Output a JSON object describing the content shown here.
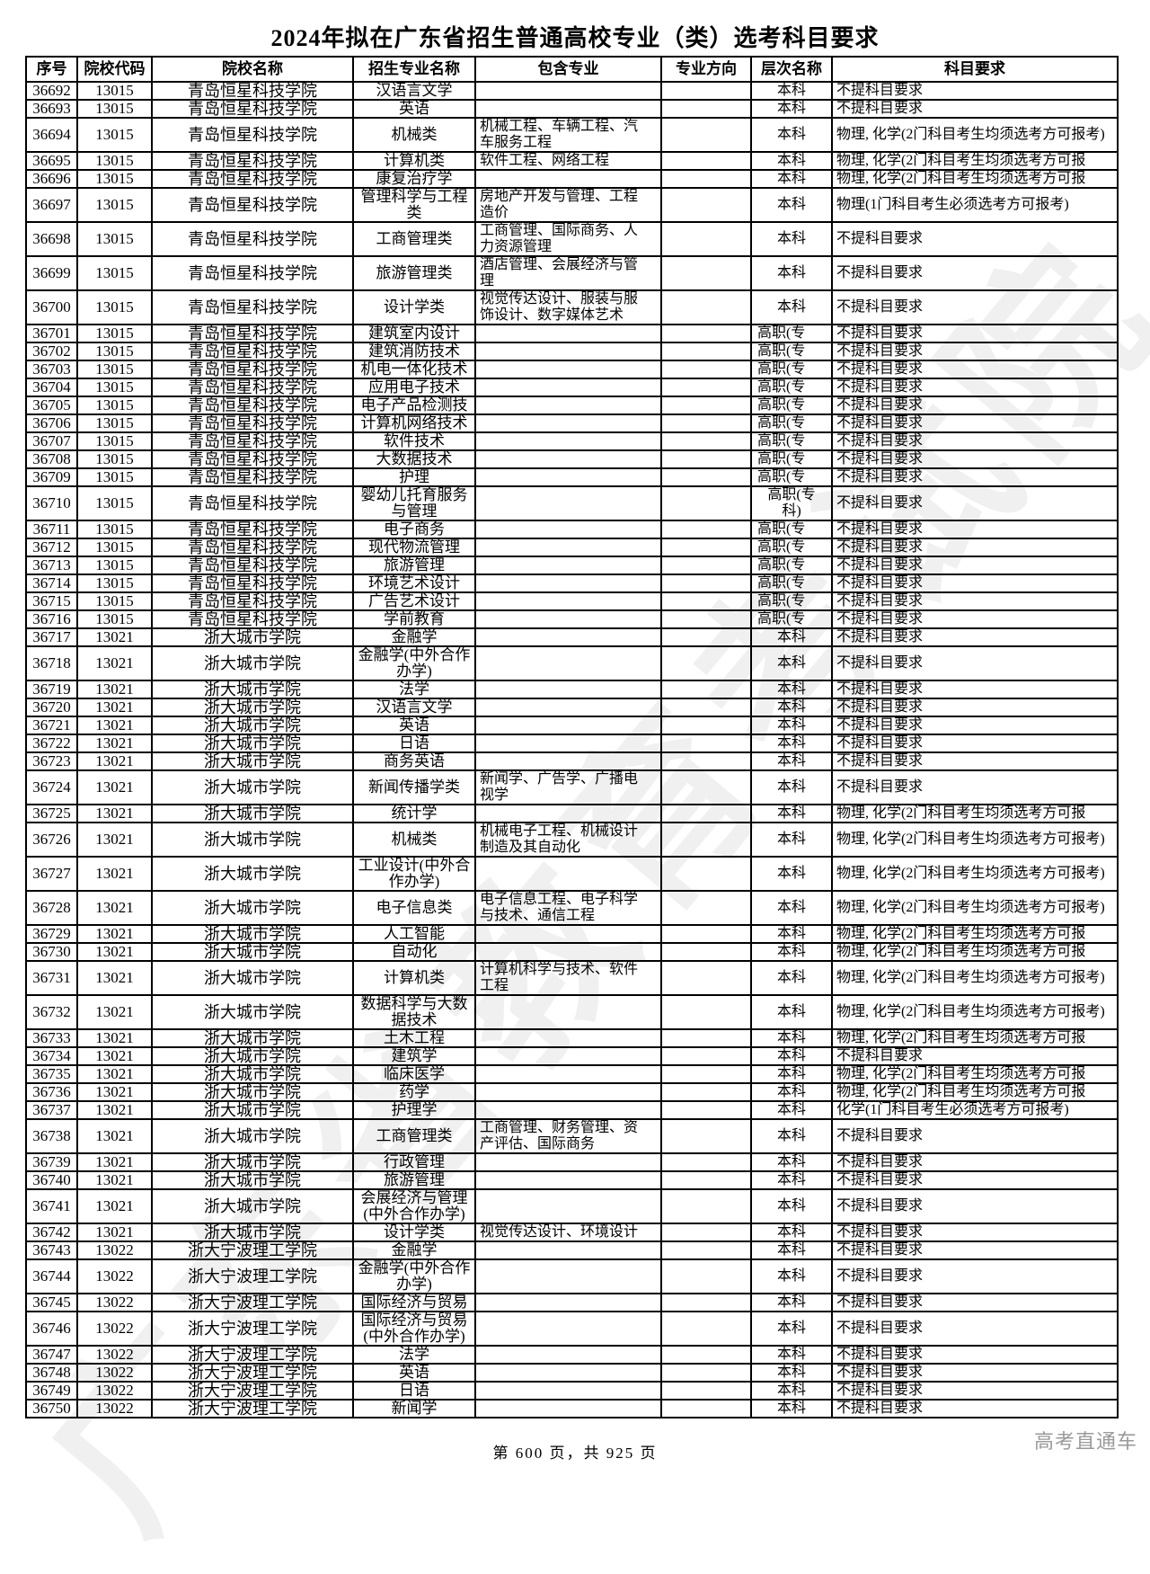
{
  "page": {
    "title": "2024年拟在广东省招生普通高校专业（类）选考科目要求",
    "footer_text": "第 600 页，共 925 页",
    "brand": "高考直通车",
    "watermark": "广东省教育考试院"
  },
  "table": {
    "headers": [
      "序号",
      "院校代码",
      "院校名称",
      "招生专业名称",
      "包含专业",
      "专业方向",
      "层次名称",
      "科目要求"
    ],
    "rows": [
      {
        "seq": "36692",
        "code": "13015",
        "school": "青岛恒星科技学院",
        "major": "汉语言文学",
        "inc": "",
        "dir": "",
        "level": "本科",
        "req": "不提科目要求",
        "h": 1
      },
      {
        "seq": "36693",
        "code": "13015",
        "school": "青岛恒星科技学院",
        "major": "英语",
        "inc": "",
        "dir": "",
        "level": "本科",
        "req": "不提科目要求",
        "h": 1
      },
      {
        "seq": "36694",
        "code": "13015",
        "school": "青岛恒星科技学院",
        "major": "机械类",
        "inc": "机械工程、车辆工程、汽车服务工程",
        "dir": "",
        "level": "本科",
        "req": "物理, 化学(2门科目考生均须选考方可报考)",
        "h": 2
      },
      {
        "seq": "36695",
        "code": "13015",
        "school": "青岛恒星科技学院",
        "major": "计算机类",
        "inc": "软件工程、网络工程",
        "dir": "",
        "level": "本科",
        "req": "物理, 化学(2门科目考生均须选考方可报",
        "h": 1
      },
      {
        "seq": "36696",
        "code": "13015",
        "school": "青岛恒星科技学院",
        "major": "康复治疗学",
        "inc": "",
        "dir": "",
        "level": "本科",
        "req": "物理, 化学(2门科目考生均须选考方可报",
        "h": 1
      },
      {
        "seq": "36697",
        "code": "13015",
        "school": "青岛恒星科技学院",
        "major": "管理科学与工程类",
        "inc": "房地产开发与管理、工程造价",
        "dir": "",
        "level": "本科",
        "req": "物理(1门科目考生必须选考方可报考)",
        "h": 2
      },
      {
        "seq": "36698",
        "code": "13015",
        "school": "青岛恒星科技学院",
        "major": "工商管理类",
        "inc": "工商管理、国际商务、人力资源管理",
        "dir": "",
        "level": "本科",
        "req": "不提科目要求",
        "h": 2
      },
      {
        "seq": "36699",
        "code": "13015",
        "school": "青岛恒星科技学院",
        "major": "旅游管理类",
        "inc": "酒店管理、会展经济与管理",
        "dir": "",
        "level": "本科",
        "req": "不提科目要求",
        "h": 2
      },
      {
        "seq": "36700",
        "code": "13015",
        "school": "青岛恒星科技学院",
        "major": "设计学类",
        "inc": "视觉传达设计、服装与服饰设计、数字媒体艺术",
        "dir": "",
        "level": "本科",
        "req": "不提科目要求",
        "h": 2
      },
      {
        "seq": "36701",
        "code": "13015",
        "school": "青岛恒星科技学院",
        "major": "建筑室内设计",
        "inc": "",
        "dir": "",
        "level": "高职(专",
        "req": "不提科目要求",
        "h": 1
      },
      {
        "seq": "36702",
        "code": "13015",
        "school": "青岛恒星科技学院",
        "major": "建筑消防技术",
        "inc": "",
        "dir": "",
        "level": "高职(专",
        "req": "不提科目要求",
        "h": 1
      },
      {
        "seq": "36703",
        "code": "13015",
        "school": "青岛恒星科技学院",
        "major": "机电一体化技术",
        "inc": "",
        "dir": "",
        "level": "高职(专",
        "req": "不提科目要求",
        "h": 1
      },
      {
        "seq": "36704",
        "code": "13015",
        "school": "青岛恒星科技学院",
        "major": "应用电子技术",
        "inc": "",
        "dir": "",
        "level": "高职(专",
        "req": "不提科目要求",
        "h": 1
      },
      {
        "seq": "36705",
        "code": "13015",
        "school": "青岛恒星科技学院",
        "major": "电子产品检测技",
        "inc": "",
        "dir": "",
        "level": "高职(专",
        "req": "不提科目要求",
        "h": 1
      },
      {
        "seq": "36706",
        "code": "13015",
        "school": "青岛恒星科技学院",
        "major": "计算机网络技术",
        "inc": "",
        "dir": "",
        "level": "高职(专",
        "req": "不提科目要求",
        "h": 1
      },
      {
        "seq": "36707",
        "code": "13015",
        "school": "青岛恒星科技学院",
        "major": "软件技术",
        "inc": "",
        "dir": "",
        "level": "高职(专",
        "req": "不提科目要求",
        "h": 1
      },
      {
        "seq": "36708",
        "code": "13015",
        "school": "青岛恒星科技学院",
        "major": "大数据技术",
        "inc": "",
        "dir": "",
        "level": "高职(专",
        "req": "不提科目要求",
        "h": 1
      },
      {
        "seq": "36709",
        "code": "13015",
        "school": "青岛恒星科技学院",
        "major": "护理",
        "inc": "",
        "dir": "",
        "level": "高职(专",
        "req": "不提科目要求",
        "h": 1
      },
      {
        "seq": "36710",
        "code": "13015",
        "school": "青岛恒星科技学院",
        "major": "婴幼儿托育服务与管理",
        "inc": "",
        "dir": "",
        "level": "高职(专\n科)",
        "req": "不提科目要求",
        "h": 2
      },
      {
        "seq": "36711",
        "code": "13015",
        "school": "青岛恒星科技学院",
        "major": "电子商务",
        "inc": "",
        "dir": "",
        "level": "高职(专",
        "req": "不提科目要求",
        "h": 1
      },
      {
        "seq": "36712",
        "code": "13015",
        "school": "青岛恒星科技学院",
        "major": "现代物流管理",
        "inc": "",
        "dir": "",
        "level": "高职(专",
        "req": "不提科目要求",
        "h": 1
      },
      {
        "seq": "36713",
        "code": "13015",
        "school": "青岛恒星科技学院",
        "major": "旅游管理",
        "inc": "",
        "dir": "",
        "level": "高职(专",
        "req": "不提科目要求",
        "h": 1
      },
      {
        "seq": "36714",
        "code": "13015",
        "school": "青岛恒星科技学院",
        "major": "环境艺术设计",
        "inc": "",
        "dir": "",
        "level": "高职(专",
        "req": "不提科目要求",
        "h": 1
      },
      {
        "seq": "36715",
        "code": "13015",
        "school": "青岛恒星科技学院",
        "major": "广告艺术设计",
        "inc": "",
        "dir": "",
        "level": "高职(专",
        "req": "不提科目要求",
        "h": 1
      },
      {
        "seq": "36716",
        "code": "13015",
        "school": "青岛恒星科技学院",
        "major": "学前教育",
        "inc": "",
        "dir": "",
        "level": "高职(专",
        "req": "不提科目要求",
        "h": 1
      },
      {
        "seq": "36717",
        "code": "13021",
        "school": "浙大城市学院",
        "major": "金融学",
        "inc": "",
        "dir": "",
        "level": "本科",
        "req": "不提科目要求",
        "h": 1
      },
      {
        "seq": "36718",
        "code": "13021",
        "school": "浙大城市学院",
        "major": "金融学(中外合作办学)",
        "inc": "",
        "dir": "",
        "level": "本科",
        "req": "不提科目要求",
        "h": 2
      },
      {
        "seq": "36719",
        "code": "13021",
        "school": "浙大城市学院",
        "major": "法学",
        "inc": "",
        "dir": "",
        "level": "本科",
        "req": "不提科目要求",
        "h": 1
      },
      {
        "seq": "36720",
        "code": "13021",
        "school": "浙大城市学院",
        "major": "汉语言文学",
        "inc": "",
        "dir": "",
        "level": "本科",
        "req": "不提科目要求",
        "h": 1
      },
      {
        "seq": "36721",
        "code": "13021",
        "school": "浙大城市学院",
        "major": "英语",
        "inc": "",
        "dir": "",
        "level": "本科",
        "req": "不提科目要求",
        "h": 1
      },
      {
        "seq": "36722",
        "code": "13021",
        "school": "浙大城市学院",
        "major": "日语",
        "inc": "",
        "dir": "",
        "level": "本科",
        "req": "不提科目要求",
        "h": 1
      },
      {
        "seq": "36723",
        "code": "13021",
        "school": "浙大城市学院",
        "major": "商务英语",
        "inc": "",
        "dir": "",
        "level": "本科",
        "req": "不提科目要求",
        "h": 1
      },
      {
        "seq": "36724",
        "code": "13021",
        "school": "浙大城市学院",
        "major": "新闻传播学类",
        "inc": "新闻学、广告学、广播电视学",
        "dir": "",
        "level": "本科",
        "req": "不提科目要求",
        "h": 2
      },
      {
        "seq": "36725",
        "code": "13021",
        "school": "浙大城市学院",
        "major": "统计学",
        "inc": "",
        "dir": "",
        "level": "本科",
        "req": "物理, 化学(2门科目考生均须选考方可报",
        "h": 1
      },
      {
        "seq": "36726",
        "code": "13021",
        "school": "浙大城市学院",
        "major": "机械类",
        "inc": "机械电子工程、机械设计制造及其自动化",
        "dir": "",
        "level": "本科",
        "req": "物理, 化学(2门科目考生均须选考方可报考)",
        "h": 2
      },
      {
        "seq": "36727",
        "code": "13021",
        "school": "浙大城市学院",
        "major": "工业设计(中外合作办学)",
        "inc": "",
        "dir": "",
        "level": "本科",
        "req": "物理, 化学(2门科目考生均须选考方可报考)",
        "h": 2
      },
      {
        "seq": "36728",
        "code": "13021",
        "school": "浙大城市学院",
        "major": "电子信息类",
        "inc": "电子信息工程、电子科学与技术、通信工程",
        "dir": "",
        "level": "本科",
        "req": "物理, 化学(2门科目考生均须选考方可报考)",
        "h": 2
      },
      {
        "seq": "36729",
        "code": "13021",
        "school": "浙大城市学院",
        "major": "人工智能",
        "inc": "",
        "dir": "",
        "level": "本科",
        "req": "物理, 化学(2门科目考生均须选考方可报",
        "h": 1
      },
      {
        "seq": "36730",
        "code": "13021",
        "school": "浙大城市学院",
        "major": "自动化",
        "inc": "",
        "dir": "",
        "level": "本科",
        "req": "物理, 化学(2门科目考生均须选考方可报",
        "h": 1
      },
      {
        "seq": "36731",
        "code": "13021",
        "school": "浙大城市学院",
        "major": "计算机类",
        "inc": "计算机科学与技术、软件工程",
        "dir": "",
        "level": "本科",
        "req": "物理, 化学(2门科目考生均须选考方可报考)",
        "h": 2
      },
      {
        "seq": "36732",
        "code": "13021",
        "school": "浙大城市学院",
        "major": "数据科学与大数据技术",
        "inc": "",
        "dir": "",
        "level": "本科",
        "req": "物理, 化学(2门科目考生均须选考方可报考)",
        "h": 2
      },
      {
        "seq": "36733",
        "code": "13021",
        "school": "浙大城市学院",
        "major": "土木工程",
        "inc": "",
        "dir": "",
        "level": "本科",
        "req": "物理, 化学(2门科目考生均须选考方可报",
        "h": 1
      },
      {
        "seq": "36734",
        "code": "13021",
        "school": "浙大城市学院",
        "major": "建筑学",
        "inc": "",
        "dir": "",
        "level": "本科",
        "req": "不提科目要求",
        "h": 1
      },
      {
        "seq": "36735",
        "code": "13021",
        "school": "浙大城市学院",
        "major": "临床医学",
        "inc": "",
        "dir": "",
        "level": "本科",
        "req": "物理, 化学(2门科目考生均须选考方可报",
        "h": 1
      },
      {
        "seq": "36736",
        "code": "13021",
        "school": "浙大城市学院",
        "major": "药学",
        "inc": "",
        "dir": "",
        "level": "本科",
        "req": "物理, 化学(2门科目考生均须选考方可报",
        "h": 1
      },
      {
        "seq": "36737",
        "code": "13021",
        "school": "浙大城市学院",
        "major": "护理学",
        "inc": "",
        "dir": "",
        "level": "本科",
        "req": "化学(1门科目考生必须选考方可报考)",
        "h": 1
      },
      {
        "seq": "36738",
        "code": "13021",
        "school": "浙大城市学院",
        "major": "工商管理类",
        "inc": "工商管理、财务管理、资产评估、国际商务",
        "dir": "",
        "level": "本科",
        "req": "不提科目要求",
        "h": 2
      },
      {
        "seq": "36739",
        "code": "13021",
        "school": "浙大城市学院",
        "major": "行政管理",
        "inc": "",
        "dir": "",
        "level": "本科",
        "req": "不提科目要求",
        "h": 1
      },
      {
        "seq": "36740",
        "code": "13021",
        "school": "浙大城市学院",
        "major": "旅游管理",
        "inc": "",
        "dir": "",
        "level": "本科",
        "req": "不提科目要求",
        "h": 1
      },
      {
        "seq": "36741",
        "code": "13021",
        "school": "浙大城市学院",
        "major": "会展经济与管理(中外合作办学)",
        "inc": "",
        "dir": "",
        "level": "本科",
        "req": "不提科目要求",
        "h": 2
      },
      {
        "seq": "36742",
        "code": "13021",
        "school": "浙大城市学院",
        "major": "设计学类",
        "inc": "视觉传达设计、环境设计",
        "dir": "",
        "level": "本科",
        "req": "不提科目要求",
        "h": 1
      },
      {
        "seq": "36743",
        "code": "13022",
        "school": "浙大宁波理工学院",
        "major": "金融学",
        "inc": "",
        "dir": "",
        "level": "本科",
        "req": "不提科目要求",
        "h": 1
      },
      {
        "seq": "36744",
        "code": "13022",
        "school": "浙大宁波理工学院",
        "major": "金融学(中外合作办学)",
        "inc": "",
        "dir": "",
        "level": "本科",
        "req": "不提科目要求",
        "h": 2
      },
      {
        "seq": "36745",
        "code": "13022",
        "school": "浙大宁波理工学院",
        "major": "国际经济与贸易",
        "inc": "",
        "dir": "",
        "level": "本科",
        "req": "不提科目要求",
        "h": 1
      },
      {
        "seq": "36746",
        "code": "13022",
        "school": "浙大宁波理工学院",
        "major": "国际经济与贸易(中外合作办学)",
        "inc": "",
        "dir": "",
        "level": "本科",
        "req": "不提科目要求",
        "h": 2
      },
      {
        "seq": "36747",
        "code": "13022",
        "school": "浙大宁波理工学院",
        "major": "法学",
        "inc": "",
        "dir": "",
        "level": "本科",
        "req": "不提科目要求",
        "h": 1
      },
      {
        "seq": "36748",
        "code": "13022",
        "school": "浙大宁波理工学院",
        "major": "英语",
        "inc": "",
        "dir": "",
        "level": "本科",
        "req": "不提科目要求",
        "h": 1
      },
      {
        "seq": "36749",
        "code": "13022",
        "school": "浙大宁波理工学院",
        "major": "日语",
        "inc": "",
        "dir": "",
        "level": "本科",
        "req": "不提科目要求",
        "h": 1
      },
      {
        "seq": "36750",
        "code": "13022",
        "school": "浙大宁波理工学院",
        "major": "新闻学",
        "inc": "",
        "dir": "",
        "level": "本科",
        "req": "不提科目要求",
        "h": 1
      }
    ]
  }
}
